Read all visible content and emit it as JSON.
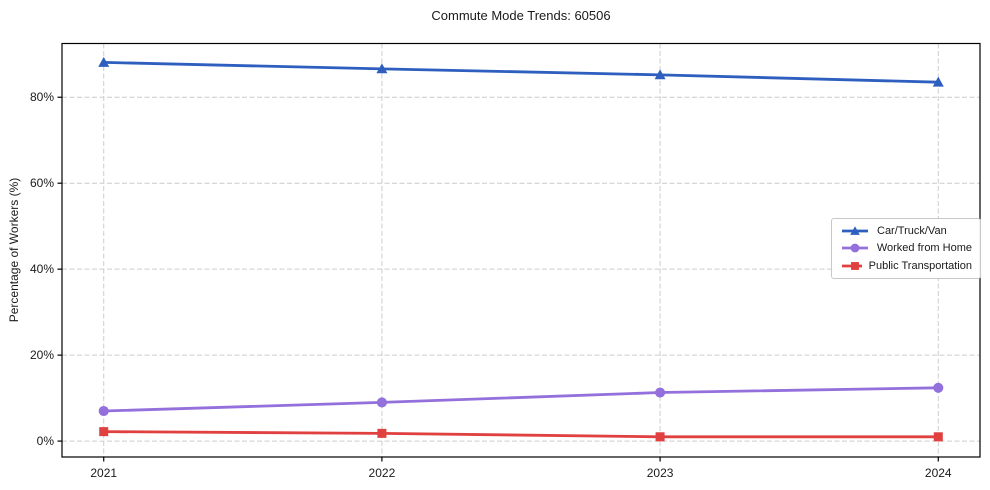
{
  "chart_data": {
    "type": "line",
    "title": "Commute Mode Trends: 60506",
    "xlabel": "",
    "ylabel": "Percentage of Workers (%)",
    "x": [
      2021,
      2022,
      2023,
      2024
    ],
    "x_tick_labels": [
      "2021",
      "2022",
      "2023",
      "2024"
    ],
    "y_ticks": [
      0,
      20,
      40,
      60,
      80
    ],
    "y_tick_labels": [
      "0%",
      "20%",
      "40%",
      "60%",
      "80%"
    ],
    "xlim": [
      2020.85,
      2024.15
    ],
    "ylim": [
      -3.7,
      92.5
    ],
    "grid": true,
    "grid_style": "dashed",
    "grid_color": "#cccccc",
    "legend_position": "center-right",
    "series": [
      {
        "name": "Car/Truck/Van",
        "color": "#2e5fbf",
        "marker": "triangle",
        "values": [
          88.1,
          86.6,
          85.2,
          83.5
        ]
      },
      {
        "name": "Worked from Home",
        "color": "#9370db",
        "marker": "circle",
        "values": [
          7.0,
          9.0,
          11.3,
          12.4
        ]
      },
      {
        "name": "Public Transportation",
        "color": "#e04040",
        "marker": "square",
        "values": [
          2.2,
          1.8,
          1.0,
          1.0
        ]
      }
    ]
  }
}
